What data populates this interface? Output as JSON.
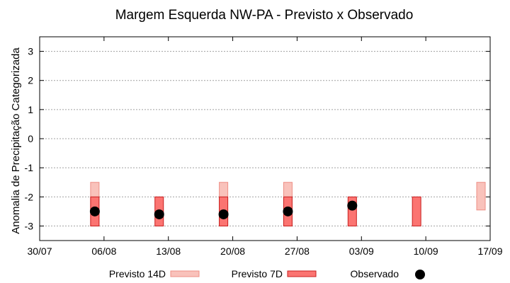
{
  "chart_data": {
    "type": "bar",
    "title": "Margem Esquerda NW-PA - Previsto x Observado",
    "xlabel": "",
    "ylabel": "Anomalia de Precipitação Categorizada",
    "ylim": [
      -3.5,
      3.5
    ],
    "yticks": [
      3,
      2,
      1,
      0,
      -1,
      -2,
      -3
    ],
    "xlim": [
      "2024-07-30",
      "2024-09-17"
    ],
    "xticks": [
      "30/07",
      "06/08",
      "13/08",
      "20/08",
      "27/08",
      "03/09",
      "10/09",
      "17/09"
    ],
    "grid": true,
    "legend_position": "bottom",
    "colors": {
      "previsto_14d_fill": "#f9c2bb",
      "previsto_14d_edge": "#ee8f86",
      "previsto_7d_fill": "#fb7471",
      "previsto_7d_edge": "#c81f1f",
      "observado": "#000000",
      "grid": "#a0a0a0"
    },
    "series": [
      {
        "name": "Previsto 14D",
        "kind": "range-bar",
        "points": [
          {
            "x": "2024-08-05",
            "low": -3.0,
            "high": -1.5
          },
          {
            "x": "2024-08-19",
            "low": -3.0,
            "high": -1.5
          },
          {
            "x": "2024-08-26",
            "low": -3.0,
            "high": -1.5
          },
          {
            "x": "2024-09-16",
            "low": -2.45,
            "high": -1.5
          }
        ]
      },
      {
        "name": "Previsto 7D",
        "kind": "range-bar",
        "points": [
          {
            "x": "2024-08-05",
            "low": -3.0,
            "high": -2.0
          },
          {
            "x": "2024-08-12",
            "low": -3.0,
            "high": -2.0
          },
          {
            "x": "2024-08-19",
            "low": -3.0,
            "high": -2.0
          },
          {
            "x": "2024-08-26",
            "low": -3.0,
            "high": -2.0
          },
          {
            "x": "2024-09-02",
            "low": -3.0,
            "high": -2.0
          },
          {
            "x": "2024-09-09",
            "low": -3.0,
            "high": -2.0
          }
        ]
      },
      {
        "name": "Observado",
        "kind": "point",
        "points": [
          {
            "x": "2024-08-05",
            "y": -2.5
          },
          {
            "x": "2024-08-12",
            "y": -2.6
          },
          {
            "x": "2024-08-19",
            "y": -2.6
          },
          {
            "x": "2024-08-26",
            "y": -2.5
          },
          {
            "x": "2024-09-02",
            "y": -2.3
          }
        ]
      }
    ]
  }
}
